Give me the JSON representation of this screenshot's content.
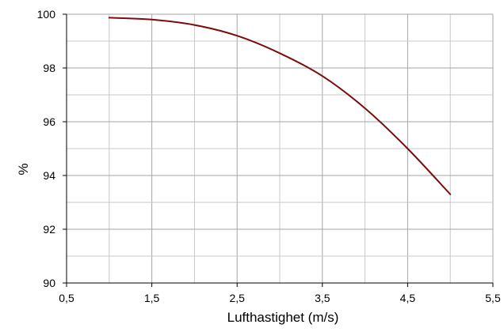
{
  "chart_data": {
    "type": "line",
    "title": "",
    "xlabel": "Lufthastighet (m/s)",
    "ylabel": "%",
    "xlim": [
      0.5,
      5.5
    ],
    "ylim": [
      90,
      100
    ],
    "x_major_ticks": [
      "0,5",
      "1,5",
      "2,5",
      "3,5",
      "4,5",
      "5,5"
    ],
    "y_major_ticks": [
      "90",
      "92",
      "94",
      "96",
      "98",
      "100"
    ],
    "grid": true,
    "grid_minor": true,
    "legend": "none",
    "series": [
      {
        "color": "#7b0c0c",
        "x": [
          1.0,
          1.5,
          2.0,
          2.5,
          3.0,
          3.5,
          4.0,
          4.5,
          5.0
        ],
        "y": [
          99.87,
          99.8,
          99.6,
          99.2,
          98.55,
          97.7,
          96.5,
          95.0,
          93.3
        ]
      }
    ]
  }
}
